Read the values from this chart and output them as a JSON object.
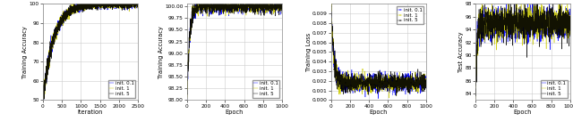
{
  "fig_width": 6.4,
  "fig_height": 1.46,
  "dpi": 100,
  "subplot1": {
    "xlabel": "Iteration",
    "ylabel": "Training Accuracy",
    "xlim": [
      0,
      2500
    ],
    "ylim": [
      50,
      100
    ],
    "yticks": [
      50,
      60,
      70,
      80,
      90,
      100
    ],
    "xticks": [
      0,
      500,
      1000,
      1500,
      2000,
      2500
    ],
    "legend": [
      "init. 0.1",
      "init. 1",
      "init. 5"
    ],
    "colors": [
      "#0000ff",
      "#cccc00",
      "#000000"
    ]
  },
  "subplot2": {
    "xlabel": "Epoch",
    "ylabel": "Training Accuracy",
    "xlim": [
      0,
      1000
    ],
    "ylim": [
      98.0,
      100.05
    ],
    "yticks": [
      98.0,
      98.25,
      98.5,
      98.75,
      99.0,
      99.25,
      99.5,
      99.75,
      100.0
    ],
    "xticks": [
      0,
      200,
      400,
      600,
      800,
      1000
    ],
    "legend": [
      "init. 0.1",
      "init. 1",
      "init. 5"
    ],
    "colors": [
      "#0000ff",
      "#cccc00",
      "#000000"
    ]
  },
  "subplot3": {
    "xlabel": "Epoch",
    "ylabel": "Training Loss",
    "xlim": [
      0,
      1000
    ],
    "ylim": [
      0.0,
      0.01
    ],
    "yticks": [
      0.0,
      0.001,
      0.002,
      0.003,
      0.004,
      0.005,
      0.006,
      0.007,
      0.008,
      0.009
    ],
    "xticks": [
      0,
      200,
      400,
      600,
      800,
      1000
    ],
    "legend": [
      "init. 0.1",
      "init. 1",
      "init. 5"
    ],
    "colors": [
      "#0000ff",
      "#cccc00",
      "#000000"
    ]
  },
  "subplot4": {
    "xlabel": "Epoch",
    "ylabel": "Test Accuracy",
    "xlim": [
      0,
      1000
    ],
    "ylim": [
      83,
      98
    ],
    "yticks": [
      84,
      86,
      88,
      90,
      92,
      94,
      96,
      98
    ],
    "xticks": [
      0,
      200,
      400,
      600,
      800,
      1000
    ],
    "legend": [
      "init. 0.1",
      "init. 1",
      "init. 5"
    ],
    "colors": [
      "#0000ff",
      "#cccc00",
      "#000000"
    ]
  },
  "bg_color": "#ffffff",
  "grid_color": "#cccccc",
  "legend_fontsize": 4.0,
  "tick_fontsize": 4.2,
  "label_fontsize": 4.8
}
